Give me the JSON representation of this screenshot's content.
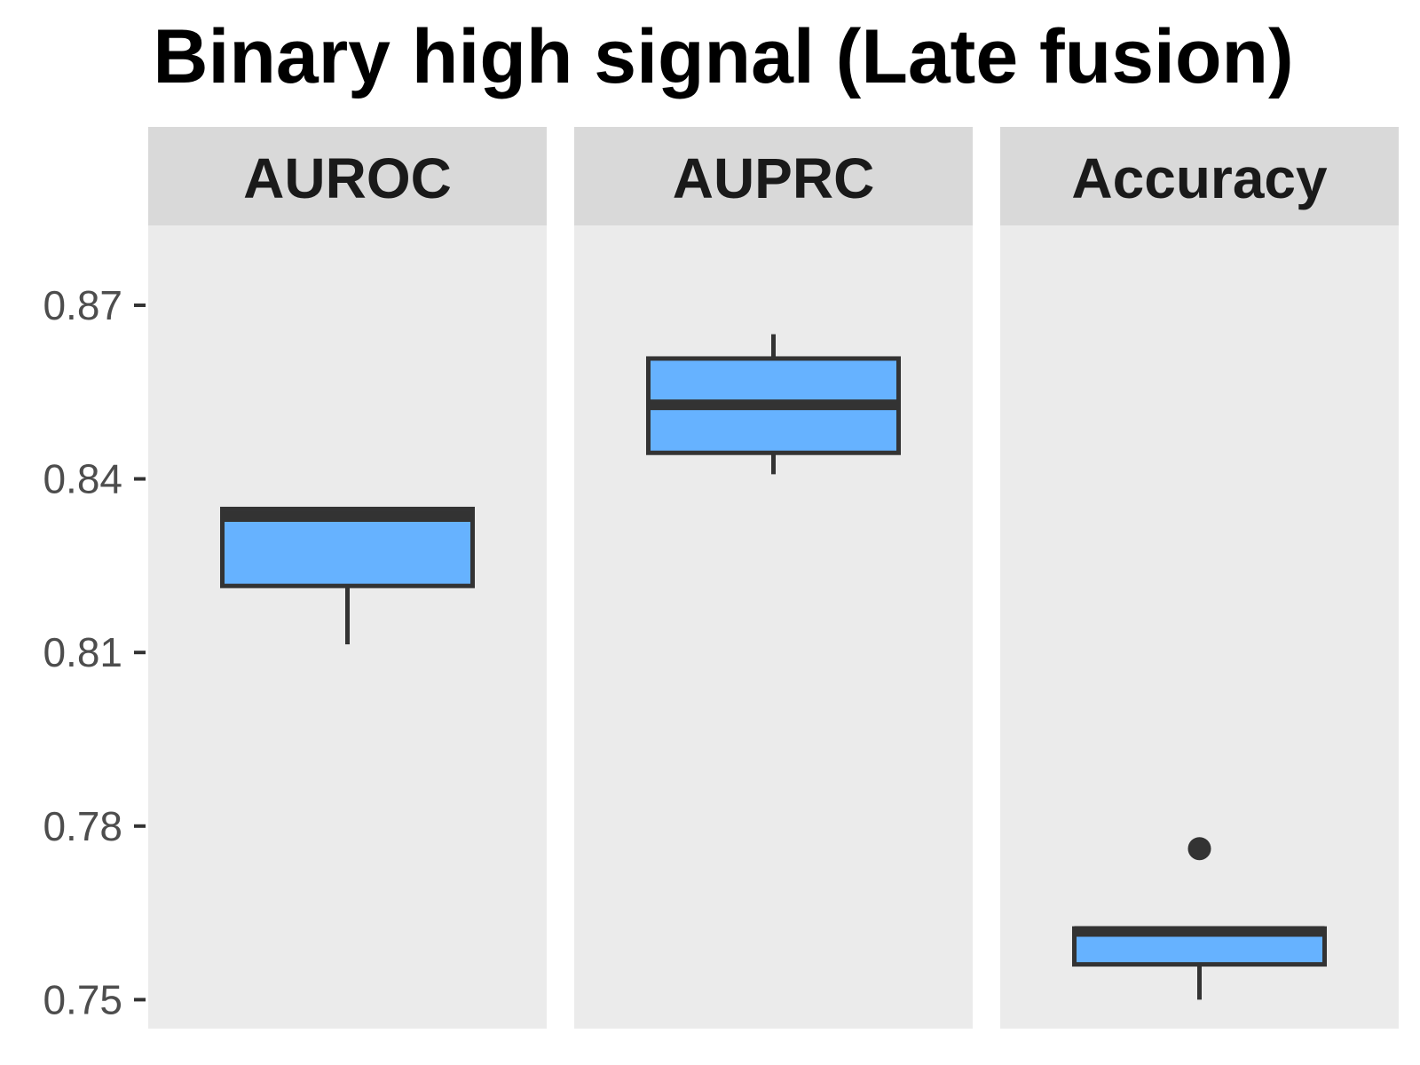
{
  "chart_data": {
    "type": "box",
    "title": "Binary high signal (Late fusion)",
    "xlabel": "",
    "ylabel": "",
    "ylim": [
      0.745,
      0.8838
    ],
    "yticks": [
      {
        "value": 0.75,
        "label": "0.75"
      },
      {
        "value": 0.78,
        "label": "0.78"
      },
      {
        "value": 0.81,
        "label": "0.81"
      },
      {
        "value": 0.84,
        "label": "0.84"
      },
      {
        "value": 0.87,
        "label": "0.87"
      }
    ],
    "grid": false,
    "legend": "none",
    "colors": {
      "box_fill": "#66b2ff",
      "box_stroke": "#333333",
      "panel_bg": "#ebebeb",
      "strip_bg": "#d9d9d9",
      "tick": "#333333"
    },
    "panels": [
      {
        "label": "AUROC",
        "whisker_low": 0.8114,
        "q1": 0.8215,
        "median": 0.8335,
        "q3": 0.8348,
        "whisker_high": 0.8348,
        "outliers": []
      },
      {
        "label": "AUPRC",
        "whisker_low": 0.8408,
        "q1": 0.8445,
        "median": 0.8528,
        "q3": 0.8608,
        "whisker_high": 0.865,
        "outliers": []
      },
      {
        "label": "Accuracy",
        "whisker_low": 0.75,
        "q1": 0.7561,
        "median": 0.7618,
        "q3": 0.7623,
        "whisker_high": 0.7623,
        "outliers": [
          0.7761
        ]
      }
    ]
  }
}
